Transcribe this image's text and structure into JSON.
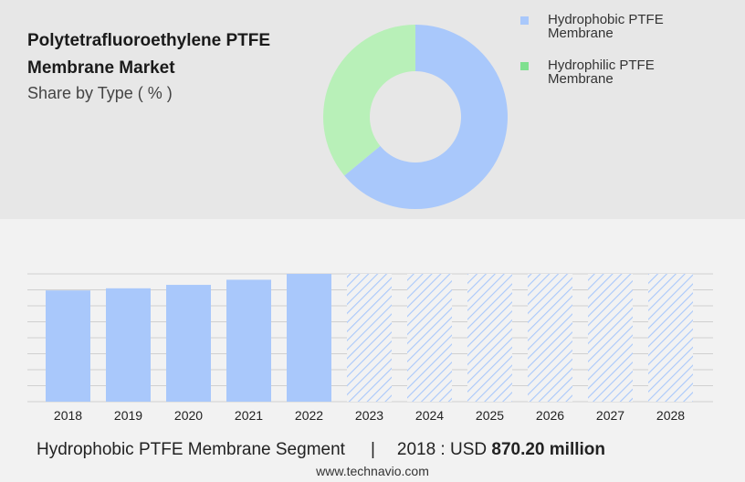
{
  "title": "Polytetrafluoroethylene PTFE Membrane Market",
  "subtitle": "Share by Type ( % )",
  "legend": [
    {
      "label": "Hydrophobic PTFE Membrane",
      "color": "#a9c8fb"
    },
    {
      "label": "Hydrophilic PTFE Membrane",
      "color": "#7fe08f"
    }
  ],
  "chart_data": [
    {
      "type": "pie",
      "donut": true,
      "slices": [
        {
          "name": "Hydrophobic PTFE Membrane",
          "value": 64,
          "color": "#a9c8fb"
        },
        {
          "name": "Hydrophilic PTFE Membrane",
          "value": 36,
          "color": "#b8f0b8"
        }
      ]
    },
    {
      "type": "bar",
      "categories": [
        "2018",
        "2019",
        "2020",
        "2021",
        "2022",
        "2023",
        "2024",
        "2025",
        "2026",
        "2027",
        "2028"
      ],
      "values": [
        870.2,
        887,
        914,
        954,
        1000,
        null,
        null,
        null,
        null,
        null,
        null
      ],
      "forecast_categories": [
        "2023",
        "2024",
        "2025",
        "2026",
        "2027",
        "2028"
      ],
      "ylim": [
        0,
        1000
      ],
      "grid": true,
      "bar_color": "#a9c8fb"
    }
  ],
  "footer": {
    "segment": "Hydrophobic PTFE Membrane Segment",
    "separator": "|",
    "year_label": "2018 : USD",
    "value": "870.20 million"
  },
  "source": "www.technavio.com"
}
